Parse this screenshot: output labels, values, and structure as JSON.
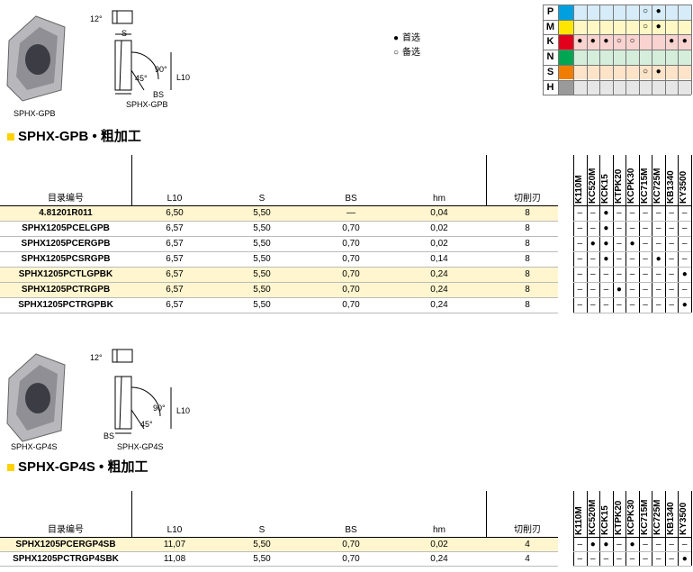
{
  "materials": {
    "rows": [
      {
        "letter": "P",
        "color": "#00a0e0",
        "tint": "#d6ecf8",
        "marks": [
          null,
          null,
          null,
          null,
          null,
          "○",
          "●",
          null,
          null
        ]
      },
      {
        "letter": "M",
        "color": "#ffe600",
        "tint": "#fff7c4",
        "marks": [
          null,
          null,
          null,
          null,
          null,
          "○",
          "●",
          null,
          null
        ]
      },
      {
        "letter": "K",
        "color": "#e2001a",
        "tint": "#f9d3cf",
        "marks": [
          "●",
          "●",
          "●",
          "○",
          "○",
          null,
          null,
          "●",
          "●"
        ]
      },
      {
        "letter": "N",
        "color": "#00a651",
        "tint": "#d5eedb",
        "marks": [
          null,
          null,
          null,
          null,
          null,
          null,
          null,
          null,
          null
        ]
      },
      {
        "letter": "S",
        "color": "#f07d00",
        "tint": "#fde3c8",
        "marks": [
          null,
          null,
          null,
          null,
          null,
          "○",
          "●",
          null,
          null
        ]
      },
      {
        "letter": "H",
        "color": "#9a9a9a",
        "tint": "#e6e6e6",
        "marks": [
          null,
          null,
          null,
          null,
          null,
          null,
          null,
          null,
          null
        ]
      }
    ]
  },
  "legend": [
    {
      "symbol": "●",
      "label": "首选"
    },
    {
      "symbol": "○",
      "label": "备选"
    }
  ],
  "sections": [
    {
      "figure": {
        "photo_label": "SPHX-GPB",
        "labels": [
          "12°",
          "S",
          "90°",
          "45°",
          "L10",
          "BS",
          "SPHX-GPB"
        ]
      },
      "title": "SPHX-GPB • 粗加工",
      "table": {
        "columns": [
          "目录编号",
          "L10",
          "S",
          "BS",
          "hm",
          "切削刃"
        ],
        "grades": [
          "K110M",
          "KC520M",
          "KCK15",
          "KTPK20",
          "KCPK30",
          "KC715M",
          "KC725M",
          "KB1340",
          "KY3500"
        ],
        "rows": [
          {
            "highlight": true,
            "cells": [
              "4.81201R011",
              "6,50",
              "5,50",
              "—",
              "0,04",
              "8"
            ],
            "grades": [
              "–",
              "–",
              "●",
              "–",
              "–",
              "–",
              "–",
              "–",
              "–"
            ]
          },
          {
            "highlight": false,
            "cells": [
              "SPHX1205PCELGPB",
              "6,57",
              "5,50",
              "0,70",
              "0,02",
              "8"
            ],
            "grades": [
              "–",
              "–",
              "●",
              "–",
              "–",
              "–",
              "–",
              "–",
              "–"
            ]
          },
          {
            "highlight": false,
            "cells": [
              "SPHX1205PCERGPB",
              "6,57",
              "5,50",
              "0,70",
              "0,02",
              "8"
            ],
            "grades": [
              "–",
              "●",
              "●",
              "–",
              "●",
              "–",
              "–",
              "–",
              "–"
            ]
          },
          {
            "highlight": false,
            "cells": [
              "SPHX1205PCSRGPB",
              "6,57",
              "5,50",
              "0,70",
              "0,14",
              "8"
            ],
            "grades": [
              "–",
              "–",
              "●",
              "–",
              "–",
              "–",
              "●",
              "–",
              "–"
            ]
          },
          {
            "highlight": true,
            "cells": [
              "SPHX1205PCTLGPBK",
              "6,57",
              "5,50",
              "0,70",
              "0,24",
              "8"
            ],
            "grades": [
              "–",
              "–",
              "–",
              "–",
              "–",
              "–",
              "–",
              "–",
              "●"
            ]
          },
          {
            "highlight": true,
            "cells": [
              "SPHX1205PCTRGPB",
              "6,57",
              "5,50",
              "0,70",
              "0,24",
              "8"
            ],
            "grades": [
              "–",
              "–",
              "–",
              "●",
              "–",
              "–",
              "–",
              "–",
              "–"
            ]
          },
          {
            "highlight": false,
            "cells": [
              "SPHX1205PCTRGPBK",
              "6,57",
              "5,50",
              "0,70",
              "0,24",
              "8"
            ],
            "grades": [
              "–",
              "–",
              "–",
              "–",
              "–",
              "–",
              "–",
              "–",
              "●"
            ]
          }
        ]
      }
    },
    {
      "figure": {
        "photo_label": "SPHX-GP4S",
        "labels": [
          "12°",
          "90°",
          "L10",
          "45°",
          "BS",
          "SPHX-GP4S"
        ]
      },
      "title": "SPHX-GP4S • 粗加工",
      "table": {
        "columns": [
          "目录编号",
          "L10",
          "S",
          "BS",
          "hm",
          "切削刃"
        ],
        "grades": [
          "K110M",
          "KC520M",
          "KCK15",
          "KTPK20",
          "KCPK30",
          "KC715M",
          "KC725M",
          "KB1340",
          "KY3500"
        ],
        "rows": [
          {
            "highlight": true,
            "cells": [
              "SPHX1205PCERGP4SB",
              "11,07",
              "5,50",
              "0,70",
              "0,02",
              "4"
            ],
            "grades": [
              "–",
              "●",
              "●",
              "–",
              "●",
              "–",
              "–",
              "–",
              "–"
            ]
          },
          {
            "highlight": false,
            "cells": [
              "SPHX1205PCTRGP4SBK",
              "11,08",
              "5,50",
              "0,70",
              "0,24",
              "4"
            ],
            "grades": [
              "–",
              "–",
              "–",
              "–",
              "–",
              "–",
              "–",
              "–",
              "●"
            ]
          }
        ]
      }
    }
  ]
}
